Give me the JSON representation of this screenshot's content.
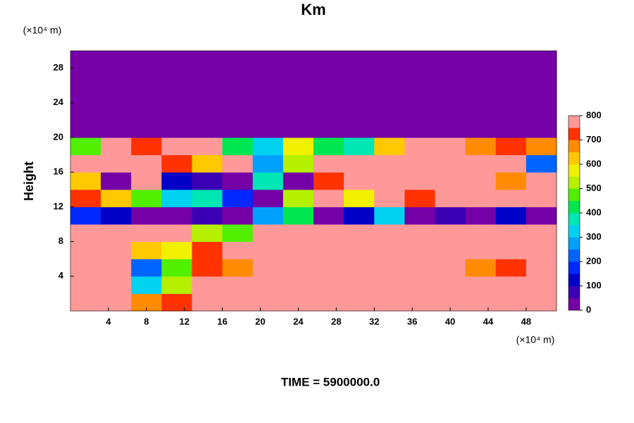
{
  "chart_data": {
    "type": "heatmap",
    "title": "Km",
    "ylabel": "Height",
    "x_unit_label": "(×10⁴ m)",
    "y_unit_label": "(×10⁴ m)",
    "footer": "TIME = 5900000.0",
    "xlim": [
      0,
      51.2
    ],
    "ylim": [
      0,
      30
    ],
    "xticks": [
      4,
      8,
      12,
      16,
      20,
      24,
      28,
      32,
      36,
      40,
      44,
      48
    ],
    "yticks": [
      4,
      8,
      12,
      16,
      20,
      24,
      28
    ],
    "clim": [
      0,
      800
    ],
    "cticks": [
      0,
      100,
      200,
      300,
      400,
      500,
      600,
      700,
      800
    ],
    "colorscale": [
      "#7400a6",
      "#3c00b4",
      "#0000c8",
      "#0028ff",
      "#0064ff",
      "#00a0ff",
      "#00d2f0",
      "#00e6b4",
      "#00e650",
      "#50f000",
      "#b4f000",
      "#f0f000",
      "#ffc800",
      "#ff8c00",
      "#ff3200",
      "#ff9999"
    ],
    "z": [
      [
        800,
        800,
        650,
        700,
        800,
        800,
        800,
        800,
        800,
        800,
        800,
        800,
        800,
        800,
        800,
        800
      ],
      [
        800,
        800,
        300,
        500,
        750,
        800,
        800,
        800,
        800,
        800,
        800,
        800,
        800,
        800,
        800,
        800
      ],
      [
        800,
        800,
        200,
        450,
        700,
        650,
        800,
        800,
        800,
        800,
        800,
        800,
        800,
        650,
        700,
        800
      ],
      [
        800,
        750,
        600,
        550,
        700,
        750,
        800,
        800,
        800,
        800,
        800,
        800,
        800,
        800,
        800,
        800
      ],
      [
        800,
        800,
        800,
        800,
        500,
        450,
        800,
        800,
        800,
        800,
        800,
        800,
        800,
        800,
        800,
        750
      ],
      [
        150,
        100,
        0,
        0,
        50,
        0,
        250,
        400,
        0,
        100,
        300,
        0,
        50,
        0,
        100,
        0
      ],
      [
        700,
        600,
        450,
        300,
        350,
        150,
        0,
        500,
        800,
        550,
        800,
        700,
        750,
        800,
        750,
        800
      ],
      [
        600,
        0,
        750,
        100,
        50,
        0,
        350,
        0,
        700,
        800,
        800,
        750,
        800,
        800,
        650,
        800
      ],
      [
        750,
        800,
        800,
        700,
        600,
        800,
        250,
        500,
        800,
        800,
        800,
        800,
        800,
        800,
        800,
        200
      ],
      [
        450,
        750,
        700,
        800,
        750,
        400,
        300,
        550,
        400,
        350,
        600,
        750,
        800,
        650,
        700,
        650
      ],
      [
        0,
        0,
        0,
        0,
        0,
        0,
        0,
        0,
        0,
        0,
        0,
        0,
        0,
        0,
        0,
        0
      ],
      [
        0,
        0,
        0,
        0,
        0,
        0,
        0,
        0,
        0,
        0,
        0,
        0,
        0,
        0,
        0,
        0
      ],
      [
        0,
        0,
        0,
        0,
        0,
        0,
        0,
        0,
        0,
        0,
        0,
        0,
        0,
        0,
        0,
        0
      ],
      [
        0,
        0,
        0,
        0,
        0,
        0,
        0,
        0,
        0,
        0,
        0,
        0,
        0,
        0,
        0,
        0
      ],
      [
        0,
        0,
        0,
        0,
        0,
        0,
        0,
        0,
        0,
        0,
        0,
        0,
        0,
        0,
        0,
        0
      ]
    ]
  }
}
